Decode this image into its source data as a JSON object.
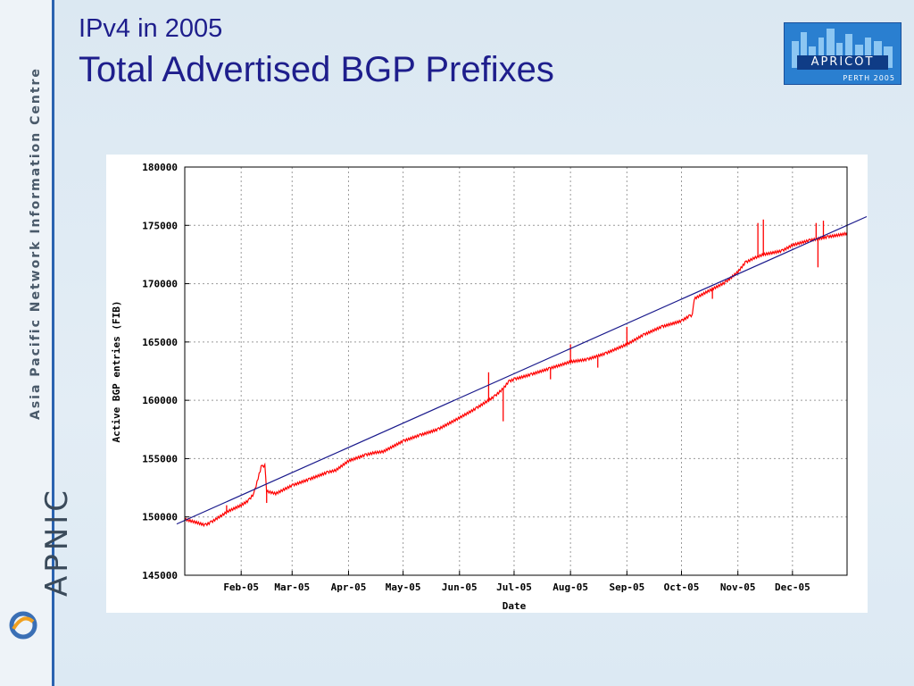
{
  "slide": {
    "subtitle": "IPv4 in 2005",
    "title": "Total Advertised BGP Prefixes",
    "side_caption": "Asia Pacific Network Information Centre",
    "apnic_word": "APNIC",
    "badge_label": "APRICOT",
    "badge_sub": "PERTH 2005"
  },
  "colors": {
    "title": "#1e1e8c",
    "data_line": "#ff0000",
    "trend_line": "#1a1a8c",
    "grid": "#9a9a9a"
  },
  "chart_data": {
    "type": "line",
    "title": "",
    "xlabel": "Date",
    "ylabel": "Active BGP entries (FIB)",
    "grid": true,
    "ylim": [
      145000,
      180000
    ],
    "y_ticks": [
      145000,
      150000,
      155000,
      160000,
      165000,
      170000,
      175000,
      180000
    ],
    "y_tick_labels": [
      "145000",
      "150000",
      "155000",
      "160000",
      "165000",
      "170000",
      "175000",
      "180000"
    ],
    "xlim": [
      "2005-01-01",
      "2005-12-31"
    ],
    "x_ticks": [
      "2005-02-01",
      "2005-03-01",
      "2005-04-01",
      "2005-05-01",
      "2005-06-01",
      "2005-07-01",
      "2005-08-01",
      "2005-09-01",
      "2005-10-01",
      "2005-11-01",
      "2005-12-01"
    ],
    "x_tick_labels": [
      "Feb-05",
      "Mar-05",
      "Apr-05",
      "May-05",
      "Jun-05",
      "Jul-05",
      "Aug-05",
      "Sep-05",
      "Oct-05",
      "Nov-05",
      "Dec-05"
    ],
    "series": [
      {
        "kind": "observed",
        "points": [
          [
            "2005-01-01",
            149800
          ],
          [
            "2005-01-08",
            149500
          ],
          [
            "2005-01-12",
            149300
          ],
          [
            "2005-01-15",
            149500
          ],
          [
            "2005-01-20",
            150000
          ],
          [
            "2005-01-25",
            150500
          ],
          [
            "2005-02-01",
            151000
          ],
          [
            "2005-02-05",
            151400
          ],
          [
            "2005-02-08",
            152000
          ],
          [
            "2005-02-12",
            154300
          ],
          [
            "2005-02-14",
            154400
          ],
          [
            "2005-02-15",
            152200
          ],
          [
            "2005-02-20",
            152000
          ],
          [
            "2005-03-01",
            152700
          ],
          [
            "2005-03-10",
            153200
          ],
          [
            "2005-03-20",
            153800
          ],
          [
            "2005-03-25",
            154000
          ],
          [
            "2005-04-01",
            154800
          ],
          [
            "2005-04-10",
            155300
          ],
          [
            "2005-04-15",
            155500
          ],
          [
            "2005-04-20",
            155600
          ],
          [
            "2005-05-01",
            156500
          ],
          [
            "2005-05-10",
            157000
          ],
          [
            "2005-05-20",
            157500
          ],
          [
            "2005-06-01",
            158500
          ],
          [
            "2005-06-10",
            159300
          ],
          [
            "2005-06-20",
            160300
          ],
          [
            "2005-06-25",
            161000
          ],
          [
            "2005-06-28",
            161600
          ],
          [
            "2005-07-01",
            161800
          ],
          [
            "2005-07-10",
            162200
          ],
          [
            "2005-07-20",
            162700
          ],
          [
            "2005-08-01",
            163300
          ],
          [
            "2005-08-10",
            163500
          ],
          [
            "2005-08-20",
            164000
          ],
          [
            "2005-09-01",
            164800
          ],
          [
            "2005-09-10",
            165600
          ],
          [
            "2005-09-20",
            166300
          ],
          [
            "2005-10-01",
            166800
          ],
          [
            "2005-10-05",
            167200
          ],
          [
            "2005-10-07",
            167300
          ],
          [
            "2005-10-08",
            168700
          ],
          [
            "2005-10-15",
            169300
          ],
          [
            "2005-10-25",
            170100
          ],
          [
            "2005-11-01",
            171000
          ],
          [
            "2005-11-05",
            171800
          ],
          [
            "2005-11-10",
            172200
          ],
          [
            "2005-11-15",
            172500
          ],
          [
            "2005-11-25",
            172800
          ],
          [
            "2005-12-01",
            173300
          ],
          [
            "2005-12-10",
            173700
          ],
          [
            "2005-12-20",
            174000
          ],
          [
            "2005-12-31",
            174300
          ]
        ],
        "spikes": [
          [
            "2005-01-24",
            151000
          ],
          [
            "2005-02-15",
            151200
          ],
          [
            "2005-06-17",
            162400
          ],
          [
            "2005-06-25",
            158200
          ],
          [
            "2005-07-21",
            161800
          ],
          [
            "2005-08-01",
            164800
          ],
          [
            "2005-08-16",
            162800
          ],
          [
            "2005-09-01",
            166300
          ],
          [
            "2005-10-18",
            168700
          ],
          [
            "2005-11-12",
            175200
          ],
          [
            "2005-11-15",
            175500
          ],
          [
            "2005-12-14",
            175200
          ],
          [
            "2005-12-15",
            171400
          ],
          [
            "2005-12-18",
            175400
          ]
        ]
      },
      {
        "kind": "trend",
        "points": [
          [
            "2005-01-01",
            149700
          ],
          [
            "2005-12-31",
            175000
          ]
        ]
      }
    ]
  }
}
